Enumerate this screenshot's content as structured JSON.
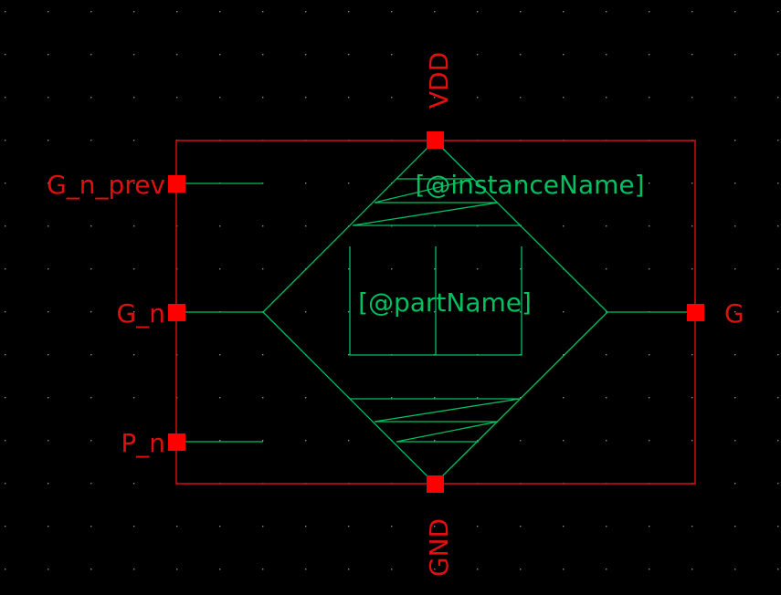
{
  "colors": {
    "background": "#000000",
    "symbol_border": "#d01010",
    "pin": "#ff0000",
    "pin_label": "#e01010",
    "drawing": "#00c060",
    "grid_dot": "#8a8a8a"
  },
  "pins": {
    "vdd": "VDD",
    "gnd": "GND",
    "g_n_prev": "G_n_prev",
    "g_n": "G_n",
    "p_n": "P_n",
    "g": "G"
  },
  "text": {
    "instance_name": "[@instanceName]",
    "part_name": "[@partName]"
  }
}
